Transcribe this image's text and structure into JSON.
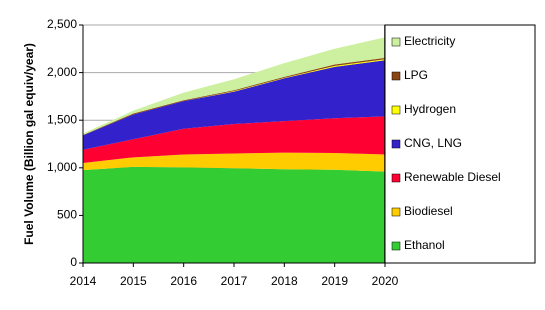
{
  "chart_data": {
    "type": "stacked-area",
    "y_label": "Fuel Volume (Billion gal equiv/year)",
    "x": [
      2014,
      2015,
      2016,
      2017,
      2018,
      2019,
      2020
    ],
    "xlim": [
      2014,
      2020
    ],
    "xticks": [
      2014,
      2015,
      2016,
      2017,
      2018,
      2019,
      2020
    ],
    "ylim": [
      0,
      2500
    ],
    "yticks": [
      0,
      500,
      {
        "value": 1000,
        "label": "1,000"
      },
      {
        "value": 1500,
        "label": "1,500"
      },
      {
        "value": 2000,
        "label": "2,000"
      },
      {
        "value": 2500,
        "label": "2,500"
      }
    ],
    "grid": true,
    "legend": "right",
    "series": [
      {
        "name": "Ethanol",
        "color": "#33cc33",
        "values": [
          975,
          1010,
          1005,
          995,
          985,
          980,
          960
        ]
      },
      {
        "name": "Biodiesel",
        "color": "#ffcc00",
        "values": [
          75,
          100,
          135,
          155,
          175,
          175,
          180
        ]
      },
      {
        "name": "Renewable Diesel",
        "color": "#ff0033",
        "values": [
          140,
          190,
          270,
          310,
          330,
          365,
          400
        ]
      },
      {
        "name": "CNG, LNG",
        "color": "#3322cc",
        "values": [
          150,
          260,
          290,
          340,
          450,
          540,
          590
        ]
      },
      {
        "name": "Hydrogen",
        "color": "#ffff00",
        "values": [
          0,
          0,
          0,
          5,
          5,
          10,
          10
        ]
      },
      {
        "name": "LPG",
        "color": "#8b4513",
        "values": [
          5,
          10,
          10,
          10,
          10,
          15,
          15
        ]
      },
      {
        "name": "Electricity",
        "color": "#ccf0a0",
        "values": [
          15,
          30,
          80,
          115,
          145,
          165,
          215
        ]
      }
    ]
  }
}
